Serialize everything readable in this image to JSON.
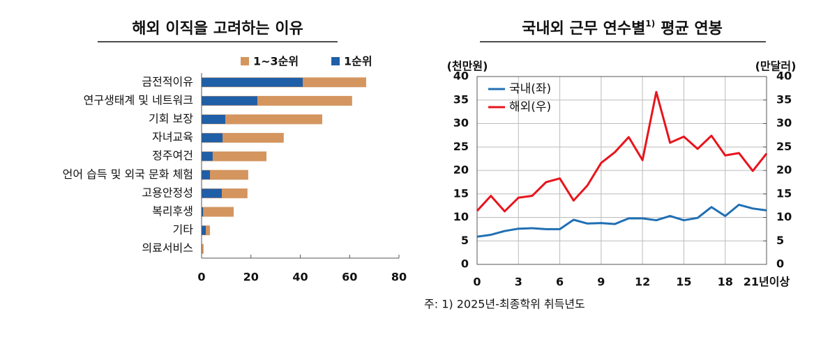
{
  "chart_data": [
    {
      "type": "hbar_overlay",
      "title": "해외 이직을 고려하는 이유",
      "categories": [
        "금전적이유",
        "연구생태계 및 네트워크",
        "기회 보장",
        "자녀교육",
        "정주여건",
        "언어 습득 및 외국 문화 체험",
        "고용안정성",
        "복리후생",
        "기타",
        "의료서비스"
      ],
      "series": [
        {
          "name": "1~3순위",
          "color": "#d4955f",
          "values": [
            66.7,
            61,
            48.9,
            33.3,
            26.3,
            18.9,
            18.6,
            13,
            3.4,
            0.8
          ]
        },
        {
          "name": "1순위",
          "color": "#1f5fa8",
          "values": [
            41,
            22.6,
            9.6,
            8.5,
            4.5,
            3.4,
            8.2,
            0.6,
            1.7,
            0
          ]
        }
      ],
      "xlim": [
        0,
        80
      ],
      "xticks": [
        0,
        20,
        40,
        60,
        80
      ],
      "legend": "top"
    },
    {
      "type": "line",
      "title_parts": [
        "국내외 근무 연수별",
        "1)",
        "평균 연봉"
      ],
      "ylabel": "(천만원)",
      "y2label": "(만달러)",
      "x": [
        0,
        1,
        2,
        3,
        4,
        5,
        6,
        7,
        8,
        9,
        10,
        11,
        12,
        13,
        14,
        15,
        16,
        17,
        18,
        19,
        20,
        21
      ],
      "series": [
        {
          "name": "국내(좌)",
          "color": "#1f6fb4",
          "values": [
            5.9,
            6.3,
            7.1,
            7.6,
            7.7,
            7.5,
            7.5,
            9.5,
            8.7,
            8.8,
            8.6,
            9.8,
            9.8,
            9.4,
            10.3,
            9.4,
            9.9,
            12.2,
            10.3,
            12.7,
            11.9,
            11.5
          ]
        },
        {
          "name": "해외(우)",
          "color": "#e8141c",
          "axis": "y2",
          "values": [
            11.4,
            14.6,
            11.3,
            14.2,
            14.6,
            17.5,
            18.3,
            13.6,
            16.8,
            21.6,
            23.9,
            27.1,
            22.2,
            36.7,
            25.9,
            27.2,
            24.6,
            27.4,
            23.2,
            23.7,
            19.9,
            23.6
          ]
        }
      ],
      "xlim": [
        0,
        21
      ],
      "xticks": [
        0,
        3,
        6,
        9,
        12,
        15,
        18,
        {
          "value": 21,
          "label": "21년이상"
        }
      ],
      "ylim": [
        0,
        40
      ],
      "yticks": [
        0,
        5,
        10,
        15,
        20,
        25,
        30,
        35,
        40
      ],
      "y2lim": [
        0,
        40
      ],
      "y2ticks": [
        0,
        5,
        10,
        15,
        20,
        25,
        30,
        35,
        40
      ],
      "grid": true,
      "legend": "upper left",
      "footnote": "주: 1) 2025년-최종학위 취득년도"
    }
  ]
}
